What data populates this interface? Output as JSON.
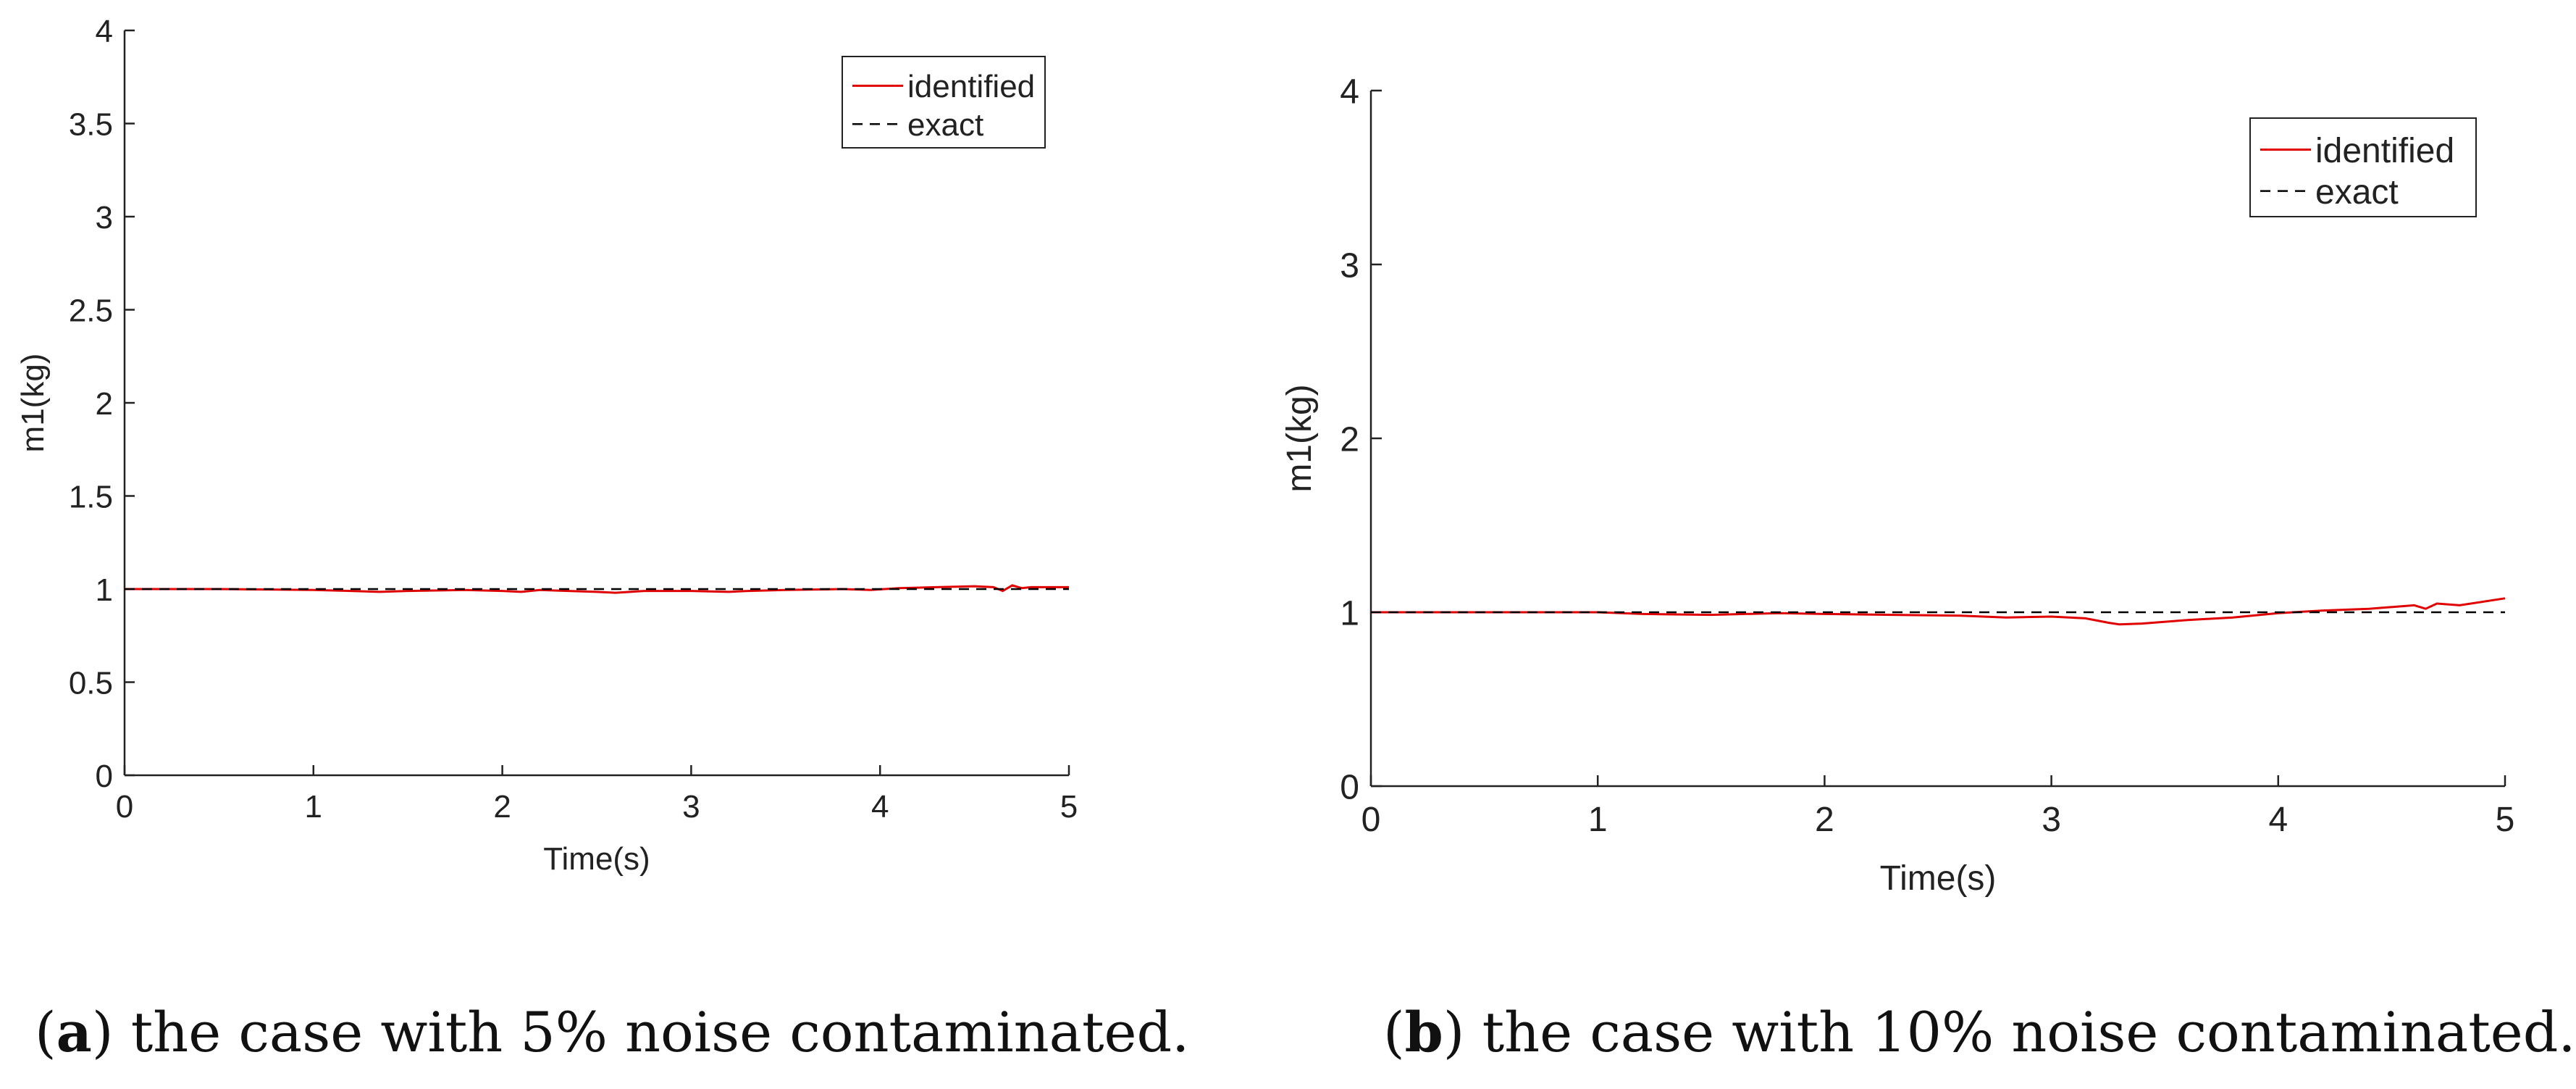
{
  "chart_data": [
    {
      "type": "line",
      "xlabel": "Time(s)",
      "ylabel": "m1(kg)",
      "xlim": [
        0,
        5
      ],
      "ylim": [
        0,
        4
      ],
      "x_ticks": [
        "0",
        "1",
        "2",
        "3",
        "4",
        "5"
      ],
      "y_ticks": [
        "0",
        "0.5",
        "1",
        "1.5",
        "2",
        "2.5",
        "3",
        "3.5",
        "4"
      ],
      "legend_position": "top-right",
      "series": [
        {
          "name": "identified",
          "style": "solid",
          "color": "#e00000",
          "x": [
            0,
            0.5,
            1.0,
            1.2,
            1.35,
            1.5,
            1.8,
            2.0,
            2.1,
            2.2,
            2.35,
            2.5,
            2.6,
            2.75,
            3.0,
            3.2,
            3.3,
            3.5,
            3.8,
            3.95,
            4.1,
            4.3,
            4.5,
            4.6,
            4.65,
            4.7,
            4.75,
            4.8,
            5.0
          ],
          "y": [
            1.0,
            1.0,
            0.995,
            0.99,
            0.985,
            0.99,
            0.995,
            0.99,
            0.985,
            0.995,
            0.99,
            0.985,
            0.98,
            0.99,
            0.99,
            0.985,
            0.99,
            0.995,
            1.0,
            0.995,
            1.005,
            1.01,
            1.015,
            1.01,
            0.99,
            1.02,
            1.005,
            1.01,
            1.01
          ]
        },
        {
          "name": "exact",
          "style": "dashed",
          "color": "#000000",
          "x": [
            0,
            5
          ],
          "y": [
            1,
            1
          ]
        }
      ],
      "caption_label": "a",
      "caption_text": "the case with 5% noise contaminated."
    },
    {
      "type": "line",
      "xlabel": "Time(s)",
      "ylabel": "m1(kg)",
      "xlim": [
        0,
        5
      ],
      "ylim": [
        0,
        4
      ],
      "x_ticks": [
        "0",
        "1",
        "2",
        "3",
        "4",
        "5"
      ],
      "y_ticks": [
        "0",
        "1",
        "2",
        "3",
        "4"
      ],
      "legend_position": "top-right",
      "series": [
        {
          "name": "identified",
          "style": "solid",
          "color": "#e00000",
          "x": [
            0,
            0.5,
            1.0,
            1.2,
            1.5,
            1.8,
            2.0,
            2.3,
            2.6,
            2.8,
            3.0,
            3.15,
            3.25,
            3.3,
            3.4,
            3.6,
            3.8,
            4.0,
            4.2,
            4.4,
            4.6,
            4.65,
            4.7,
            4.8,
            5.0
          ],
          "y": [
            1.0,
            1.0,
            1.0,
            0.99,
            0.985,
            0.995,
            0.99,
            0.985,
            0.98,
            0.97,
            0.975,
            0.965,
            0.94,
            0.93,
            0.935,
            0.955,
            0.97,
            0.995,
            1.01,
            1.02,
            1.04,
            1.02,
            1.05,
            1.04,
            1.08
          ]
        },
        {
          "name": "exact",
          "style": "dashed",
          "color": "#000000",
          "x": [
            0,
            5
          ],
          "y": [
            1,
            1
          ]
        }
      ],
      "caption_label": "b",
      "caption_text": "the case with 10% noise contaminated."
    }
  ]
}
